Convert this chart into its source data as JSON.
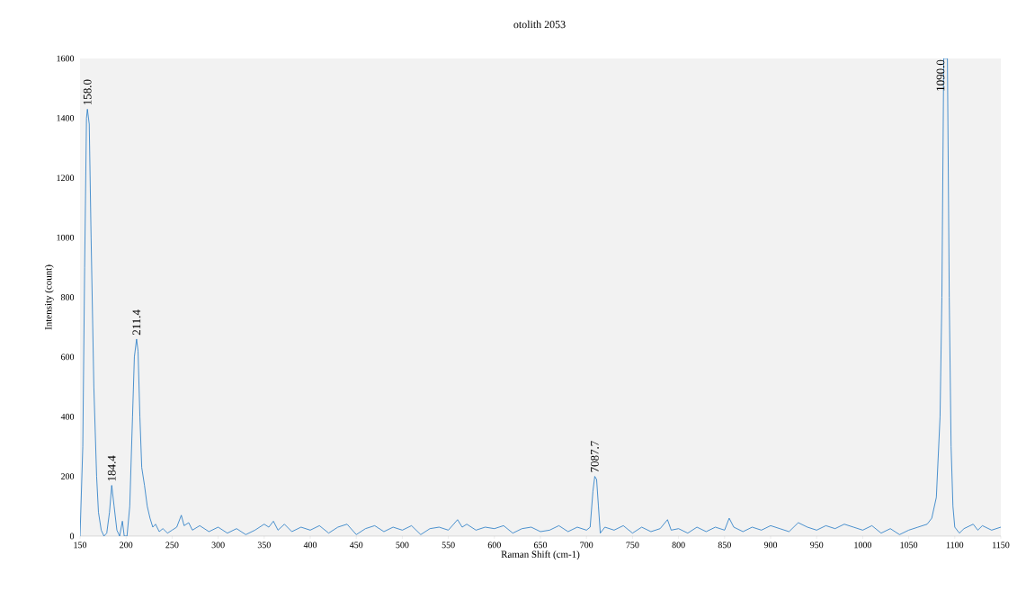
{
  "chart_data": {
    "type": "line",
    "title": "otolith 2053",
    "xlabel": "Raman Shift (cm-1)",
    "ylabel": "Intensity (count)",
    "xlim": [
      150,
      1150
    ],
    "xticks": [
      150,
      200,
      250,
      300,
      350,
      400,
      450,
      500,
      550,
      600,
      650,
      700,
      750,
      800,
      850,
      900,
      950,
      1000,
      1050,
      1100,
      1150
    ],
    "ylim": [
      0,
      1600
    ],
    "yticks": [
      0,
      200,
      400,
      600,
      800,
      1000,
      1200,
      1400,
      1600
    ],
    "grid": false,
    "marker": "none",
    "line_style": "solid",
    "series": [
      {
        "color": "#1f77c4",
        "x": [
          150,
          153,
          155,
          157,
          158,
          160,
          162,
          165,
          168,
          170,
          173,
          176,
          179,
          182,
          184.4,
          187,
          190,
          193,
          196,
          198,
          201,
          204,
          207,
          209,
          211.4,
          213,
          215,
          217,
          220,
          223,
          226,
          229,
          232,
          236,
          240,
          245,
          250,
          255,
          260,
          263,
          268,
          272,
          280,
          290,
          300,
          310,
          320,
          330,
          340,
          350,
          355,
          360,
          365,
          372,
          380,
          390,
          400,
          410,
          420,
          430,
          440,
          450,
          460,
          470,
          480,
          490,
          500,
          510,
          520,
          530,
          540,
          550,
          560,
          565,
          570,
          580,
          590,
          600,
          610,
          620,
          630,
          640,
          650,
          660,
          670,
          680,
          690,
          700,
          704,
          707,
          709,
          711,
          713,
          715,
          720,
          730,
          740,
          750,
          760,
          770,
          780,
          788,
          792,
          800,
          810,
          820,
          830,
          840,
          850,
          855,
          860,
          870,
          880,
          890,
          900,
          910,
          920,
          930,
          940,
          950,
          960,
          970,
          980,
          990,
          1000,
          1010,
          1020,
          1030,
          1040,
          1050,
          1060,
          1070,
          1075,
          1080,
          1084,
          1086,
          1088,
          1092,
          1094,
          1096,
          1098,
          1100,
          1105,
          1110,
          1120,
          1125,
          1130,
          1140,
          1150
        ],
        "values": [
          0,
          300,
          900,
          1400,
          1430,
          1380,
          1000,
          500,
          200,
          80,
          20,
          0,
          10,
          80,
          170,
          100,
          20,
          0,
          50,
          0,
          0,
          100,
          400,
          600,
          660,
          620,
          400,
          230,
          170,
          100,
          60,
          30,
          40,
          15,
          25,
          10,
          20,
          30,
          70,
          35,
          45,
          20,
          35,
          15,
          30,
          10,
          25,
          5,
          20,
          40,
          30,
          50,
          20,
          40,
          15,
          30,
          20,
          35,
          10,
          30,
          40,
          5,
          25,
          35,
          15,
          30,
          20,
          35,
          5,
          25,
          30,
          20,
          55,
          30,
          40,
          20,
          30,
          25,
          35,
          10,
          25,
          30,
          15,
          20,
          35,
          15,
          30,
          20,
          30,
          150,
          200,
          190,
          100,
          10,
          30,
          20,
          35,
          10,
          30,
          15,
          25,
          55,
          20,
          25,
          10,
          30,
          15,
          30,
          20,
          60,
          30,
          15,
          30,
          20,
          35,
          25,
          15,
          45,
          30,
          20,
          35,
          25,
          40,
          30,
          20,
          35,
          10,
          25,
          5,
          20,
          30,
          40,
          60,
          130,
          400,
          800,
          1600,
          1600,
          800,
          300,
          100,
          30,
          10,
          25,
          40,
          20,
          35,
          20,
          30
        ]
      }
    ],
    "annotations": [
      {
        "text": "158.0",
        "x": 158,
        "y": 1430
      },
      {
        "text": "184.4",
        "x": 184.4,
        "y": 170
      },
      {
        "text": "211.4",
        "x": 211.4,
        "y": 660
      },
      {
        "text": "7087.7",
        "x": 709,
        "y": 200
      },
      {
        "text": "1090.0",
        "x": 1090,
        "y": 1600
      }
    ]
  }
}
